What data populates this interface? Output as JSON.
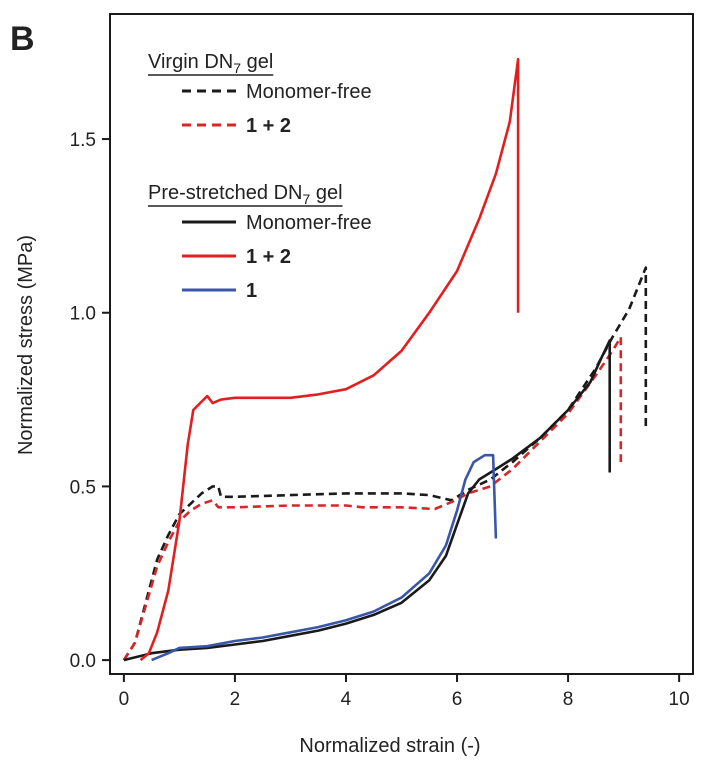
{
  "chart_data": {
    "type": "line",
    "panel_label": "B",
    "title": "",
    "xlabel": "Normalized strain (-)",
    "ylabel": "Normalized stress (MPa)",
    "xlim": [
      -0.25,
      10.25
    ],
    "ylim": [
      -0.04,
      1.86
    ],
    "x_ticks": [
      0,
      2,
      4,
      6,
      8,
      10
    ],
    "y_ticks": [
      0.0,
      0.5,
      1.0,
      1.5
    ],
    "y_tick_labels": [
      "0.0",
      "0.5",
      "1.0",
      "1.5"
    ],
    "grid": false,
    "legend_position": "top-left",
    "legend_groups": [
      {
        "heading": "Virgin DN",
        "heading_sub": "7",
        "heading_tail": " gel",
        "entries": [
          {
            "series": 0,
            "label": "Monomer-free",
            "bold": false
          },
          {
            "series": 1,
            "label": "1 + 2",
            "bold": true
          }
        ]
      },
      {
        "heading": "Pre-stretched DN",
        "heading_sub": "7",
        "heading_tail": " gel",
        "entries": [
          {
            "series": 2,
            "label": "Monomer-free",
            "bold": false
          },
          {
            "series": 3,
            "label": "1 + 2",
            "bold": true
          },
          {
            "series": 4,
            "label": "1",
            "bold": true
          }
        ]
      }
    ],
    "series": [
      {
        "name": "Virgin DN7 gel, Monomer-free",
        "color": "#1a1a1a",
        "dash": "dashed",
        "points": [
          [
            0,
            0
          ],
          [
            0.2,
            0.05
          ],
          [
            0.4,
            0.17
          ],
          [
            0.6,
            0.29
          ],
          [
            0.8,
            0.36
          ],
          [
            1.0,
            0.42
          ],
          [
            1.2,
            0.45
          ],
          [
            1.4,
            0.48
          ],
          [
            1.6,
            0.5
          ],
          [
            1.7,
            0.5
          ],
          [
            1.75,
            0.47
          ],
          [
            2,
            0.47
          ],
          [
            3,
            0.475
          ],
          [
            4,
            0.48
          ],
          [
            5,
            0.48
          ],
          [
            5.5,
            0.475
          ],
          [
            5.9,
            0.46
          ],
          [
            6.2,
            0.49
          ],
          [
            6.6,
            0.52
          ],
          [
            7,
            0.57
          ],
          [
            7.5,
            0.64
          ],
          [
            8,
            0.72
          ],
          [
            8.5,
            0.84
          ],
          [
            8.8,
            0.93
          ],
          [
            9.1,
            1.01
          ],
          [
            9.4,
            1.13
          ],
          [
            9.4,
            0.66
          ]
        ]
      },
      {
        "name": "Virgin DN7 gel, 1 + 2",
        "color": "#d62728",
        "dash": "dashed",
        "points": [
          [
            0,
            0
          ],
          [
            0.2,
            0.05
          ],
          [
            0.4,
            0.16
          ],
          [
            0.6,
            0.27
          ],
          [
            0.8,
            0.34
          ],
          [
            1.0,
            0.4
          ],
          [
            1.2,
            0.43
          ],
          [
            1.4,
            0.45
          ],
          [
            1.6,
            0.46
          ],
          [
            1.7,
            0.44
          ],
          [
            2,
            0.44
          ],
          [
            3,
            0.445
          ],
          [
            4,
            0.445
          ],
          [
            4.3,
            0.44
          ],
          [
            5,
            0.44
          ],
          [
            5.6,
            0.435
          ],
          [
            5.9,
            0.455
          ],
          [
            6.2,
            0.48
          ],
          [
            6.6,
            0.5
          ],
          [
            7,
            0.55
          ],
          [
            7.5,
            0.63
          ],
          [
            8,
            0.71
          ],
          [
            8.5,
            0.82
          ],
          [
            8.8,
            0.89
          ],
          [
            8.95,
            0.93
          ],
          [
            8.95,
            0.57
          ]
        ]
      },
      {
        "name": "Pre-stretched DN7 gel, Monomer-free",
        "color": "#1a1a1a",
        "dash": "solid",
        "points": [
          [
            0,
            0
          ],
          [
            0.5,
            0.02
          ],
          [
            1,
            0.03
          ],
          [
            1.5,
            0.035
          ],
          [
            2,
            0.045
          ],
          [
            2.5,
            0.055
          ],
          [
            3,
            0.07
          ],
          [
            3.5,
            0.085
          ],
          [
            4,
            0.105
          ],
          [
            4.5,
            0.13
          ],
          [
            5,
            0.165
          ],
          [
            5.5,
            0.23
          ],
          [
            5.8,
            0.3
          ],
          [
            6.0,
            0.39
          ],
          [
            6.2,
            0.48
          ],
          [
            6.4,
            0.52
          ],
          [
            6.7,
            0.55
          ],
          [
            7,
            0.58
          ],
          [
            7.5,
            0.64
          ],
          [
            8,
            0.72
          ],
          [
            8.4,
            0.8
          ],
          [
            8.6,
            0.87
          ],
          [
            8.75,
            0.92
          ],
          [
            8.75,
            0.54
          ]
        ]
      },
      {
        "name": "Pre-stretched DN7 gel, 1 + 2",
        "color": "#e02020",
        "dash": "solid",
        "points": [
          [
            0.3,
            0
          ],
          [
            0.45,
            0.02
          ],
          [
            0.6,
            0.08
          ],
          [
            0.8,
            0.2
          ],
          [
            1.0,
            0.4
          ],
          [
            1.15,
            0.62
          ],
          [
            1.25,
            0.72
          ],
          [
            1.5,
            0.76
          ],
          [
            1.6,
            0.74
          ],
          [
            1.75,
            0.75
          ],
          [
            2,
            0.755
          ],
          [
            3,
            0.755
          ],
          [
            3.5,
            0.765
          ],
          [
            4,
            0.78
          ],
          [
            4.5,
            0.82
          ],
          [
            5,
            0.89
          ],
          [
            5.5,
            1.0
          ],
          [
            6,
            1.12
          ],
          [
            6.4,
            1.27
          ],
          [
            6.7,
            1.4
          ],
          [
            6.95,
            1.55
          ],
          [
            7.1,
            1.73
          ],
          [
            7.1,
            1.0
          ]
        ]
      },
      {
        "name": "Pre-stretched DN7 gel, 1",
        "color": "#3a56a8",
        "dash": "solid",
        "points": [
          [
            0.5,
            0
          ],
          [
            0.8,
            0.02
          ],
          [
            1,
            0.035
          ],
          [
            1.5,
            0.04
          ],
          [
            2,
            0.055
          ],
          [
            2.5,
            0.065
          ],
          [
            3,
            0.08
          ],
          [
            3.5,
            0.095
          ],
          [
            4,
            0.115
          ],
          [
            4.5,
            0.14
          ],
          [
            5,
            0.18
          ],
          [
            5.5,
            0.25
          ],
          [
            5.8,
            0.33
          ],
          [
            6.0,
            0.43
          ],
          [
            6.15,
            0.52
          ],
          [
            6.3,
            0.57
          ],
          [
            6.5,
            0.59
          ],
          [
            6.65,
            0.59
          ],
          [
            6.7,
            0.35
          ]
        ]
      }
    ]
  }
}
